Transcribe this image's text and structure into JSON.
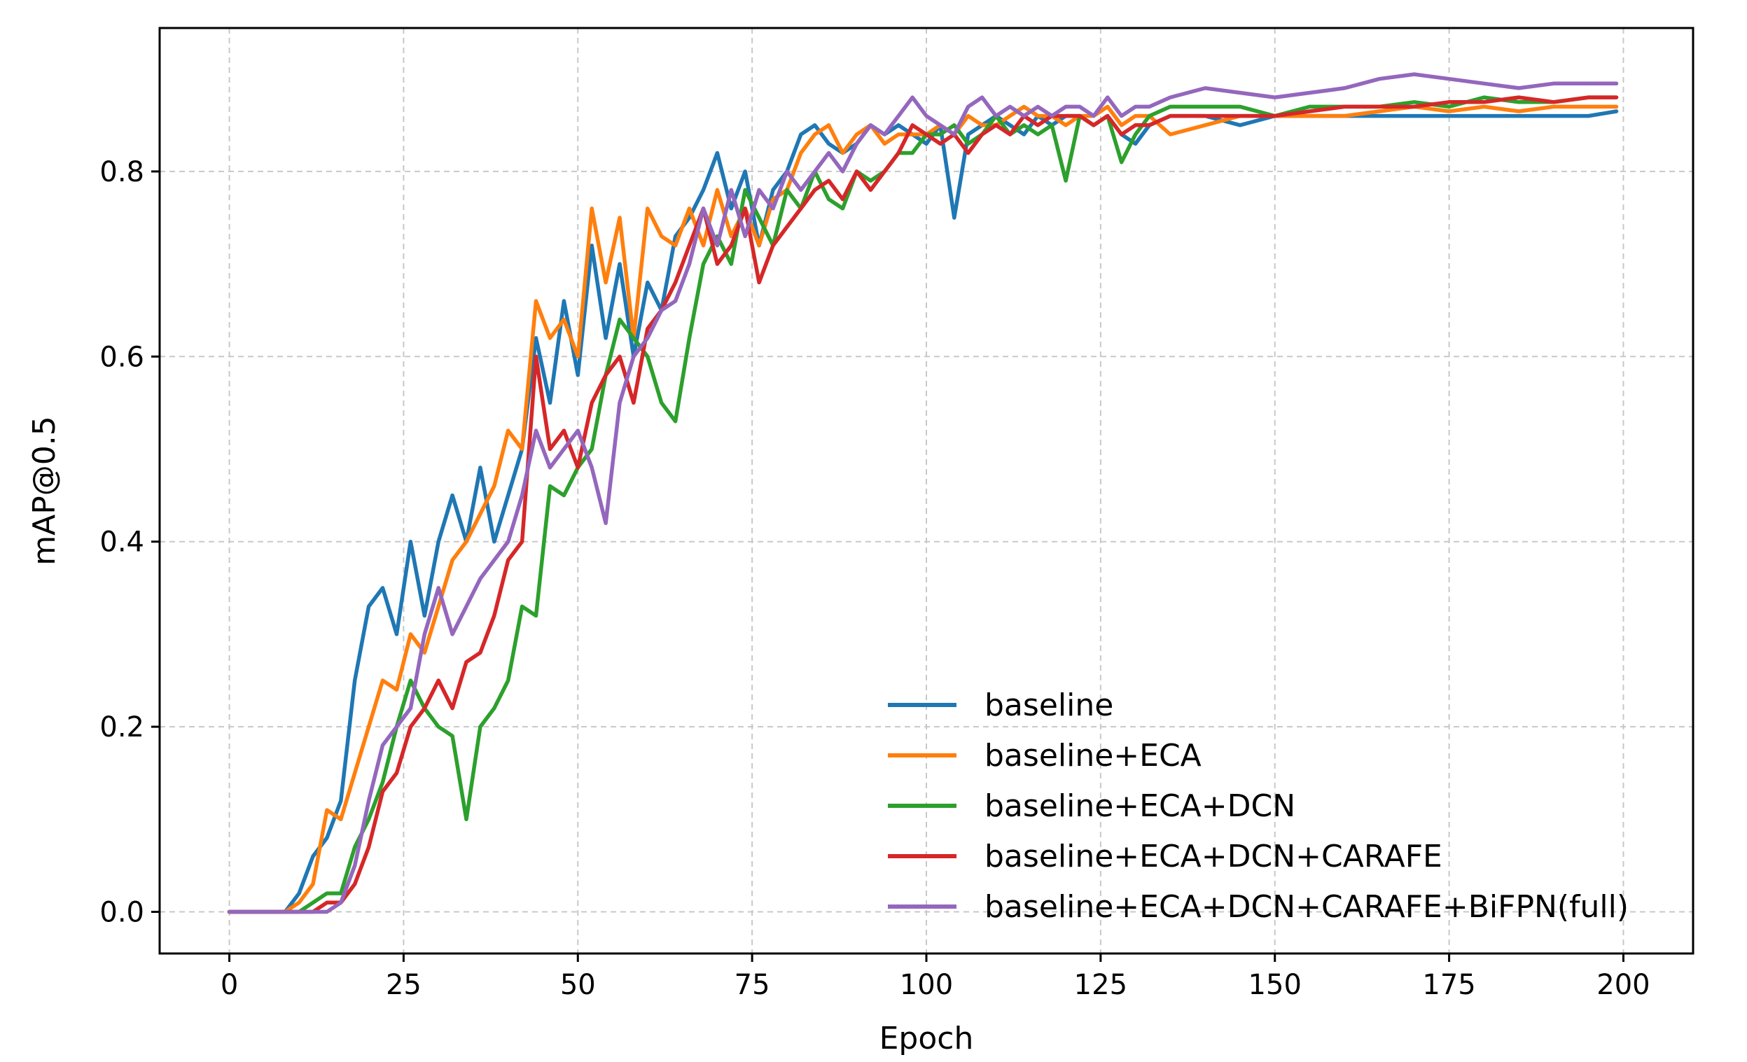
{
  "chart_data": {
    "type": "line",
    "title": "",
    "xlabel": "Epoch",
    "ylabel": "mAP@0.5",
    "xlim": [
      -10,
      210
    ],
    "ylim": [
      -0.045,
      0.955
    ],
    "xticks": [
      0,
      25,
      50,
      75,
      100,
      125,
      150,
      175,
      200
    ],
    "xtick_labels": [
      "0",
      "25",
      "50",
      "75",
      "100",
      "125",
      "150",
      "175",
      "200"
    ],
    "yticks": [
      0.0,
      0.2,
      0.4,
      0.6,
      0.8
    ],
    "ytick_labels": [
      "0.0",
      "0.2",
      "0.4",
      "0.6",
      "0.8"
    ],
    "grid": true,
    "legend_position": "lower-right",
    "x": [
      0,
      5,
      8,
      10,
      12,
      14,
      16,
      18,
      20,
      22,
      24,
      26,
      28,
      30,
      32,
      34,
      36,
      38,
      40,
      42,
      44,
      46,
      48,
      50,
      52,
      54,
      56,
      58,
      60,
      62,
      64,
      66,
      68,
      70,
      72,
      74,
      76,
      78,
      80,
      82,
      84,
      86,
      88,
      90,
      92,
      94,
      96,
      98,
      100,
      102,
      104,
      106,
      108,
      110,
      112,
      114,
      116,
      118,
      120,
      122,
      124,
      126,
      128,
      130,
      132,
      135,
      140,
      145,
      150,
      155,
      160,
      165,
      170,
      175,
      180,
      185,
      190,
      195,
      199
    ],
    "series": [
      {
        "name": "baseline",
        "color": "#1f77b4",
        "values": [
          0.0,
          0.0,
          0.0,
          0.02,
          0.06,
          0.08,
          0.12,
          0.25,
          0.33,
          0.35,
          0.3,
          0.4,
          0.32,
          0.4,
          0.45,
          0.4,
          0.48,
          0.4,
          0.45,
          0.5,
          0.62,
          0.55,
          0.66,
          0.58,
          0.72,
          0.62,
          0.7,
          0.6,
          0.68,
          0.65,
          0.73,
          0.75,
          0.78,
          0.82,
          0.76,
          0.8,
          0.72,
          0.78,
          0.8,
          0.84,
          0.85,
          0.83,
          0.82,
          0.83,
          0.85,
          0.84,
          0.85,
          0.84,
          0.83,
          0.85,
          0.75,
          0.84,
          0.85,
          0.86,
          0.85,
          0.84,
          0.86,
          0.85,
          0.86,
          0.86,
          0.85,
          0.86,
          0.84,
          0.83,
          0.85,
          0.86,
          0.86,
          0.85,
          0.86,
          0.86,
          0.86,
          0.86,
          0.86,
          0.86,
          0.86,
          0.86,
          0.86,
          0.86,
          0.865
        ]
      },
      {
        "name": "baseline+ECA",
        "color": "#ff7f0e",
        "values": [
          0.0,
          0.0,
          0.0,
          0.01,
          0.03,
          0.11,
          0.1,
          0.15,
          0.2,
          0.25,
          0.24,
          0.3,
          0.28,
          0.33,
          0.38,
          0.4,
          0.43,
          0.46,
          0.52,
          0.5,
          0.66,
          0.62,
          0.64,
          0.6,
          0.76,
          0.68,
          0.75,
          0.62,
          0.76,
          0.73,
          0.72,
          0.76,
          0.72,
          0.78,
          0.73,
          0.76,
          0.72,
          0.77,
          0.78,
          0.82,
          0.84,
          0.85,
          0.82,
          0.84,
          0.85,
          0.83,
          0.84,
          0.84,
          0.84,
          0.85,
          0.84,
          0.86,
          0.85,
          0.85,
          0.86,
          0.87,
          0.86,
          0.86,
          0.85,
          0.86,
          0.86,
          0.87,
          0.85,
          0.86,
          0.86,
          0.84,
          0.85,
          0.86,
          0.86,
          0.86,
          0.86,
          0.865,
          0.87,
          0.865,
          0.87,
          0.865,
          0.87,
          0.87,
          0.87
        ]
      },
      {
        "name": "baseline+ECA+DCN",
        "color": "#2ca02c",
        "values": [
          0.0,
          0.0,
          0.0,
          0.0,
          0.01,
          0.02,
          0.02,
          0.07,
          0.1,
          0.14,
          0.2,
          0.25,
          0.22,
          0.2,
          0.19,
          0.1,
          0.2,
          0.22,
          0.25,
          0.33,
          0.32,
          0.46,
          0.45,
          0.48,
          0.5,
          0.58,
          0.64,
          0.62,
          0.6,
          0.55,
          0.53,
          0.62,
          0.7,
          0.73,
          0.7,
          0.78,
          0.75,
          0.72,
          0.78,
          0.76,
          0.8,
          0.77,
          0.76,
          0.8,
          0.79,
          0.8,
          0.82,
          0.82,
          0.84,
          0.84,
          0.85,
          0.83,
          0.84,
          0.86,
          0.84,
          0.85,
          0.84,
          0.85,
          0.79,
          0.86,
          0.85,
          0.86,
          0.81,
          0.84,
          0.86,
          0.87,
          0.87,
          0.87,
          0.86,
          0.87,
          0.87,
          0.87,
          0.875,
          0.87,
          0.88,
          0.875,
          0.875,
          0.88,
          0.88
        ]
      },
      {
        "name": "baseline+ECA+DCN+CARAFE",
        "color": "#d62728",
        "values": [
          0.0,
          0.0,
          0.0,
          0.0,
          0.0,
          0.01,
          0.01,
          0.03,
          0.07,
          0.13,
          0.15,
          0.2,
          0.22,
          0.25,
          0.22,
          0.27,
          0.28,
          0.32,
          0.38,
          0.4,
          0.6,
          0.5,
          0.52,
          0.48,
          0.55,
          0.58,
          0.6,
          0.55,
          0.63,
          0.65,
          0.68,
          0.72,
          0.76,
          0.7,
          0.72,
          0.76,
          0.68,
          0.72,
          0.74,
          0.76,
          0.78,
          0.79,
          0.77,
          0.8,
          0.78,
          0.8,
          0.82,
          0.85,
          0.84,
          0.83,
          0.84,
          0.82,
          0.84,
          0.85,
          0.84,
          0.86,
          0.85,
          0.86,
          0.86,
          0.86,
          0.85,
          0.86,
          0.84,
          0.85,
          0.85,
          0.86,
          0.86,
          0.86,
          0.86,
          0.865,
          0.87,
          0.87,
          0.87,
          0.875,
          0.875,
          0.88,
          0.875,
          0.88,
          0.88
        ]
      },
      {
        "name": "baseline+ECA+DCN+CARAFE+BiFPN(full)",
        "color": "#9467bd",
        "values": [
          0.0,
          0.0,
          0.0,
          0.0,
          0.0,
          0.0,
          0.01,
          0.05,
          0.12,
          0.18,
          0.2,
          0.22,
          0.3,
          0.35,
          0.3,
          0.33,
          0.36,
          0.38,
          0.4,
          0.45,
          0.52,
          0.48,
          0.5,
          0.52,
          0.48,
          0.42,
          0.55,
          0.6,
          0.62,
          0.65,
          0.66,
          0.7,
          0.76,
          0.72,
          0.78,
          0.73,
          0.78,
          0.76,
          0.8,
          0.78,
          0.8,
          0.82,
          0.8,
          0.83,
          0.85,
          0.84,
          0.86,
          0.88,
          0.86,
          0.85,
          0.84,
          0.87,
          0.88,
          0.86,
          0.87,
          0.86,
          0.87,
          0.86,
          0.87,
          0.87,
          0.86,
          0.88,
          0.86,
          0.87,
          0.87,
          0.88,
          0.89,
          0.885,
          0.88,
          0.885,
          0.89,
          0.9,
          0.905,
          0.9,
          0.895,
          0.89,
          0.895,
          0.895,
          0.895
        ]
      }
    ]
  }
}
